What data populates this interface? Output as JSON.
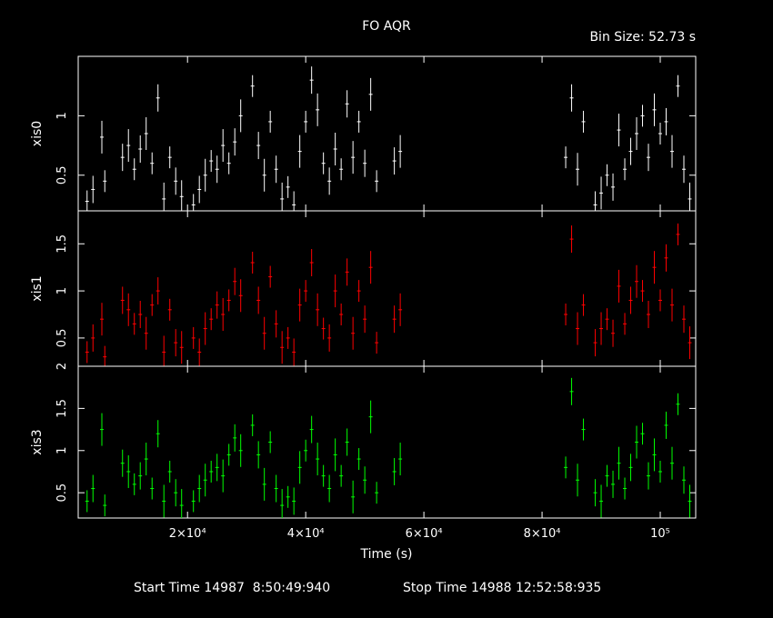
{
  "title": "FO AQR",
  "bin_size_label": "Bin Size: 52.73 s",
  "footer": {
    "start_label": "Start Time 14987  8:50:49:940",
    "stop_label": "Stop Time 14988 12:52:58:935"
  },
  "colors": {
    "background": "#000000",
    "axes": "#ffffff",
    "xis0": "#ffffff",
    "xis1": "#ff0000",
    "xis3": "#00ff00"
  },
  "chart_data": {
    "type": "scatter",
    "xlabel": "Time (s)",
    "x_axis": {
      "range": [
        1500,
        106000
      ],
      "ticks": [
        {
          "value": 20000,
          "label": "2×10⁴"
        },
        {
          "value": 40000,
          "label": "4×10⁴"
        },
        {
          "value": 60000,
          "label": "6×10⁴"
        },
        {
          "value": 80000,
          "label": "8×10⁴"
        },
        {
          "value": 100000,
          "label": "10⁵"
        }
      ]
    },
    "panels": [
      {
        "name": "xis0",
        "ylabel": "xis0",
        "color": "#ffffff",
        "ylim": [
          0.2,
          1.5
        ],
        "yticks": [
          {
            "v": 0.5,
            "l": "0.5"
          },
          {
            "v": 1,
            "l": "1"
          }
        ],
        "points": [
          [
            3000,
            0.28
          ],
          [
            4000,
            0.38
          ],
          [
            5500,
            0.82
          ],
          [
            6000,
            0.45
          ],
          [
            9000,
            0.65
          ],
          [
            10000,
            0.75
          ],
          [
            11000,
            0.55
          ],
          [
            12000,
            0.72
          ],
          [
            13000,
            0.85
          ],
          [
            14000,
            0.6
          ],
          [
            15000,
            1.15
          ],
          [
            16000,
            0.3
          ],
          [
            17000,
            0.65
          ],
          [
            18000,
            0.45
          ],
          [
            19000,
            0.32
          ],
          [
            21000,
            0.25
          ],
          [
            22000,
            0.38
          ],
          [
            23000,
            0.5
          ],
          [
            24000,
            0.62
          ],
          [
            25000,
            0.55
          ],
          [
            26000,
            0.75
          ],
          [
            27000,
            0.6
          ],
          [
            28000,
            0.78
          ],
          [
            29000,
            1.0
          ],
          [
            31000,
            1.25
          ],
          [
            32000,
            0.75
          ],
          [
            33000,
            0.5
          ],
          [
            34000,
            0.95
          ],
          [
            35000,
            0.55
          ],
          [
            36000,
            0.3
          ],
          [
            37000,
            0.4
          ],
          [
            38000,
            0.25
          ],
          [
            39000,
            0.7
          ],
          [
            40000,
            0.95
          ],
          [
            41000,
            1.3
          ],
          [
            42000,
            1.05
          ],
          [
            43000,
            0.6
          ],
          [
            44000,
            0.45
          ],
          [
            45000,
            0.72
          ],
          [
            46000,
            0.55
          ],
          [
            47000,
            1.1
          ],
          [
            48000,
            0.65
          ],
          [
            49000,
            0.95
          ],
          [
            50000,
            0.6
          ],
          [
            51000,
            1.18
          ],
          [
            52000,
            0.45
          ],
          [
            55000,
            0.62
          ],
          [
            56000,
            0.7
          ],
          [
            84000,
            0.65
          ],
          [
            85000,
            1.15
          ],
          [
            86000,
            0.55
          ],
          [
            87000,
            0.95
          ],
          [
            89000,
            0.25
          ],
          [
            90000,
            0.35
          ],
          [
            91000,
            0.5
          ],
          [
            92000,
            0.4
          ],
          [
            93000,
            0.88
          ],
          [
            94000,
            0.55
          ],
          [
            95000,
            0.7
          ],
          [
            96000,
            0.85
          ],
          [
            97000,
            1.0
          ],
          [
            98000,
            0.65
          ],
          [
            99000,
            1.05
          ],
          [
            100000,
            0.85
          ],
          [
            101000,
            0.95
          ],
          [
            102000,
            0.7
          ],
          [
            103000,
            1.25
          ],
          [
            104000,
            0.55
          ],
          [
            105000,
            0.3
          ]
        ]
      },
      {
        "name": "xis1",
        "ylabel": "xis1",
        "color": "#ff0000",
        "ylim": [
          0.2,
          1.85
        ],
        "yticks": [
          {
            "v": 0.5,
            "l": "0.5"
          },
          {
            "v": 1,
            "l": "1"
          },
          {
            "v": 1.5,
            "l": "1.5"
          }
        ],
        "points": [
          [
            3000,
            0.35
          ],
          [
            4000,
            0.5
          ],
          [
            5500,
            0.7
          ],
          [
            6000,
            0.3
          ],
          [
            9000,
            0.9
          ],
          [
            10000,
            0.8
          ],
          [
            11000,
            0.65
          ],
          [
            12000,
            0.75
          ],
          [
            13000,
            0.55
          ],
          [
            14000,
            0.85
          ],
          [
            15000,
            1.0
          ],
          [
            16000,
            0.35
          ],
          [
            17000,
            0.8
          ],
          [
            18000,
            0.45
          ],
          [
            19000,
            0.4
          ],
          [
            21000,
            0.5
          ],
          [
            22000,
            0.35
          ],
          [
            23000,
            0.6
          ],
          [
            24000,
            0.7
          ],
          [
            25000,
            0.85
          ],
          [
            26000,
            0.75
          ],
          [
            27000,
            0.9
          ],
          [
            28000,
            1.1
          ],
          [
            29000,
            0.95
          ],
          [
            31000,
            1.3
          ],
          [
            32000,
            0.9
          ],
          [
            33000,
            0.55
          ],
          [
            34000,
            1.15
          ],
          [
            35000,
            0.65
          ],
          [
            36000,
            0.4
          ],
          [
            37000,
            0.5
          ],
          [
            38000,
            0.35
          ],
          [
            39000,
            0.85
          ],
          [
            40000,
            1.0
          ],
          [
            41000,
            1.3
          ],
          [
            42000,
            0.8
          ],
          [
            43000,
            0.6
          ],
          [
            44000,
            0.5
          ],
          [
            45000,
            1.0
          ],
          [
            46000,
            0.75
          ],
          [
            47000,
            1.2
          ],
          [
            48000,
            0.55
          ],
          [
            49000,
            1.0
          ],
          [
            50000,
            0.7
          ],
          [
            51000,
            1.25
          ],
          [
            52000,
            0.45
          ],
          [
            55000,
            0.7
          ],
          [
            56000,
            0.8
          ],
          [
            84000,
            0.75
          ],
          [
            85000,
            1.55
          ],
          [
            86000,
            0.6
          ],
          [
            87000,
            0.85
          ],
          [
            89000,
            0.45
          ],
          [
            90000,
            0.6
          ],
          [
            91000,
            0.7
          ],
          [
            92000,
            0.55
          ],
          [
            93000,
            1.05
          ],
          [
            94000,
            0.65
          ],
          [
            95000,
            0.9
          ],
          [
            96000,
            1.1
          ],
          [
            97000,
            1.0
          ],
          [
            98000,
            0.75
          ],
          [
            99000,
            1.25
          ],
          [
            100000,
            0.9
          ],
          [
            101000,
            1.35
          ],
          [
            102000,
            0.85
          ],
          [
            103000,
            1.6
          ],
          [
            104000,
            0.7
          ],
          [
            105000,
            0.45
          ]
        ]
      },
      {
        "name": "xis3",
        "ylabel": "xis3",
        "color": "#00ff00",
        "ylim": [
          0.2,
          2.0
        ],
        "yticks": [
          {
            "v": 0.5,
            "l": "0.5"
          },
          {
            "v": 1,
            "l": "1"
          },
          {
            "v": 1.5,
            "l": "1.5"
          },
          {
            "v": 2,
            "l": "2"
          }
        ],
        "points": [
          [
            3000,
            0.4
          ],
          [
            4000,
            0.55
          ],
          [
            5500,
            1.25
          ],
          [
            6000,
            0.35
          ],
          [
            9000,
            0.85
          ],
          [
            10000,
            0.75
          ],
          [
            11000,
            0.6
          ],
          [
            12000,
            0.7
          ],
          [
            13000,
            0.9
          ],
          [
            14000,
            0.55
          ],
          [
            15000,
            1.2
          ],
          [
            16000,
            0.4
          ],
          [
            17000,
            0.75
          ],
          [
            18000,
            0.5
          ],
          [
            19000,
            0.35
          ],
          [
            21000,
            0.4
          ],
          [
            22000,
            0.55
          ],
          [
            23000,
            0.65
          ],
          [
            24000,
            0.75
          ],
          [
            25000,
            0.8
          ],
          [
            26000,
            0.7
          ],
          [
            27000,
            0.95
          ],
          [
            28000,
            1.15
          ],
          [
            29000,
            1.0
          ],
          [
            31000,
            1.3
          ],
          [
            32000,
            0.95
          ],
          [
            33000,
            0.6
          ],
          [
            34000,
            1.1
          ],
          [
            35000,
            0.55
          ],
          [
            36000,
            0.35
          ],
          [
            37000,
            0.45
          ],
          [
            38000,
            0.4
          ],
          [
            39000,
            0.8
          ],
          [
            40000,
            1.0
          ],
          [
            41000,
            1.25
          ],
          [
            42000,
            0.9
          ],
          [
            43000,
            0.7
          ],
          [
            44000,
            0.55
          ],
          [
            45000,
            0.95
          ],
          [
            46000,
            0.7
          ],
          [
            47000,
            1.1
          ],
          [
            48000,
            0.45
          ],
          [
            49000,
            0.9
          ],
          [
            50000,
            0.65
          ],
          [
            51000,
            1.4
          ],
          [
            52000,
            0.5
          ],
          [
            55000,
            0.75
          ],
          [
            56000,
            0.9
          ],
          [
            84000,
            0.8
          ],
          [
            85000,
            1.7
          ],
          [
            86000,
            0.65
          ],
          [
            87000,
            1.25
          ],
          [
            89000,
            0.5
          ],
          [
            90000,
            0.4
          ],
          [
            91000,
            0.7
          ],
          [
            92000,
            0.6
          ],
          [
            93000,
            0.85
          ],
          [
            94000,
            0.55
          ],
          [
            95000,
            0.8
          ],
          [
            96000,
            1.1
          ],
          [
            97000,
            1.2
          ],
          [
            98000,
            0.7
          ],
          [
            99000,
            0.95
          ],
          [
            100000,
            0.75
          ],
          [
            101000,
            1.3
          ],
          [
            102000,
            0.85
          ],
          [
            103000,
            1.55
          ],
          [
            104000,
            0.65
          ],
          [
            105000,
            0.4
          ]
        ]
      }
    ]
  }
}
